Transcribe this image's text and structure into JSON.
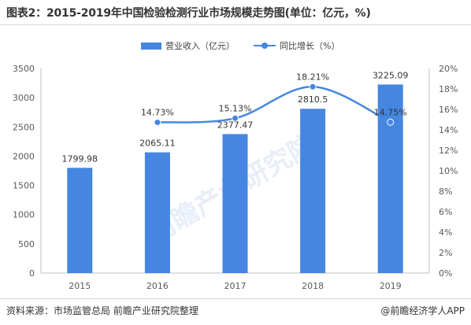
{
  "title": "图表2：2015-2019年中国检验检测行业市场规模走势图(单位：亿元，%)",
  "source": "资料来源：市场监管总局 前瞻产业研究院整理",
  "brand": "@前瞻经济学人APP",
  "watermark": "前瞻产业研究院",
  "colors": {
    "bar": "#4586e0",
    "line": "#4586e0",
    "axis": "#bfbfbf",
    "grid": "#d9d9d9",
    "text": "#595959"
  },
  "chart_data": {
    "type": "bar+line",
    "categories": [
      "2015",
      "2016",
      "2017",
      "2018",
      "2019"
    ],
    "series": [
      {
        "name": "营业收入（亿元）",
        "type": "bar",
        "axis": "left",
        "values": [
          1799.98,
          2065.11,
          2377.47,
          2810.5,
          3225.09
        ],
        "labels": [
          "1799.98",
          "2065.11",
          "2377.47",
          "2810.5",
          "3225.09"
        ]
      },
      {
        "name": "同比增长（%）",
        "type": "line",
        "axis": "right",
        "values": [
          null,
          14.73,
          15.13,
          18.21,
          14.75
        ],
        "labels": [
          "",
          "14.73%",
          "15.13%",
          "18.21%",
          "14.75%"
        ]
      }
    ],
    "y_left": {
      "min": 0,
      "max": 3500,
      "ticks": [
        "0",
        "500",
        "1000",
        "1500",
        "2000",
        "2500",
        "3000",
        "3500"
      ]
    },
    "y_right": {
      "min": 0,
      "max": 20,
      "ticks": [
        "0%",
        "2%",
        "4%",
        "6%",
        "8%",
        "10%",
        "12%",
        "14%",
        "16%",
        "18%",
        "20%"
      ]
    },
    "legend_position": "top-center",
    "grid": false
  }
}
